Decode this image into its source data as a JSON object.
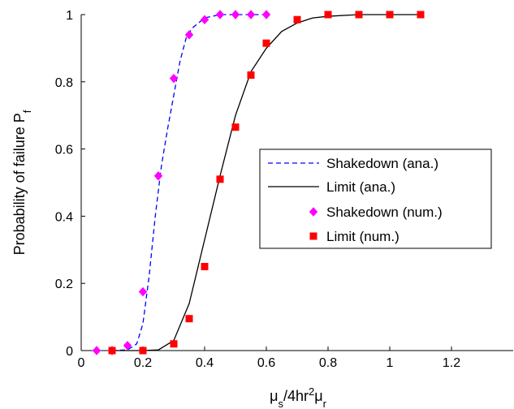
{
  "chart_data": {
    "type": "line",
    "xlabel": {
      "base": "μ",
      "sub1": "s",
      "mid": "/4hr",
      "sup": "2",
      "mid2": "μ",
      "sub2": "r"
    },
    "ylabel": {
      "base": "Probability of failure P",
      "sub": "f"
    },
    "xlim": [
      0,
      1.4
    ],
    "ylim": [
      0,
      1
    ],
    "xticks": [
      "0",
      "0.2",
      "0.4",
      "0.6",
      "0.8",
      "1",
      "1.2"
    ],
    "yticks": [
      "0",
      "0.2",
      "0.4",
      "0.6",
      "0.8",
      "1"
    ],
    "grid": false,
    "legend_position": "center-right",
    "series": [
      {
        "name": "Shakedown (ana.)",
        "style": "dashed-line",
        "color": "#0000ff",
        "x": [
          0.1,
          0.15,
          0.18,
          0.2,
          0.22,
          0.24,
          0.26,
          0.28,
          0.3,
          0.32,
          0.34,
          0.36,
          0.38,
          0.4,
          0.45,
          0.5,
          0.55,
          0.6
        ],
        "y": [
          0,
          0.002,
          0.02,
          0.08,
          0.22,
          0.4,
          0.55,
          0.66,
          0.76,
          0.86,
          0.93,
          0.96,
          0.975,
          0.99,
          1.0,
          1.0,
          1.0,
          1.0
        ]
      },
      {
        "name": "Limit (ana.)",
        "style": "solid-line",
        "color": "#000000",
        "x": [
          0.1,
          0.2,
          0.25,
          0.3,
          0.35,
          0.4,
          0.45,
          0.5,
          0.55,
          0.6,
          0.65,
          0.7,
          0.75,
          0.8,
          0.9,
          1.0,
          1.1
        ],
        "y": [
          0,
          0,
          0.002,
          0.03,
          0.14,
          0.33,
          0.52,
          0.7,
          0.83,
          0.9,
          0.95,
          0.975,
          0.99,
          0.995,
          1.0,
          1.0,
          1.0
        ]
      },
      {
        "name": "Shakedown (num.)",
        "style": "diamond-marker",
        "color": "#ff00ff",
        "x": [
          0.05,
          0.1,
          0.15,
          0.2,
          0.25,
          0.3,
          0.35,
          0.4,
          0.45,
          0.5,
          0.55,
          0.6
        ],
        "y": [
          0,
          0,
          0.015,
          0.175,
          0.52,
          0.81,
          0.94,
          0.985,
          1.0,
          1.0,
          1.0,
          1.0
        ]
      },
      {
        "name": "Limit (num.)",
        "style": "square-marker",
        "color": "#ff0000",
        "x": [
          0.1,
          0.2,
          0.3,
          0.35,
          0.4,
          0.45,
          0.5,
          0.55,
          0.6,
          0.7,
          0.8,
          0.9,
          1.0,
          1.1
        ],
        "y": [
          0,
          0,
          0.02,
          0.095,
          0.25,
          0.51,
          0.665,
          0.82,
          0.915,
          0.985,
          1.0,
          1.0,
          1.0,
          1.0
        ]
      }
    ]
  }
}
